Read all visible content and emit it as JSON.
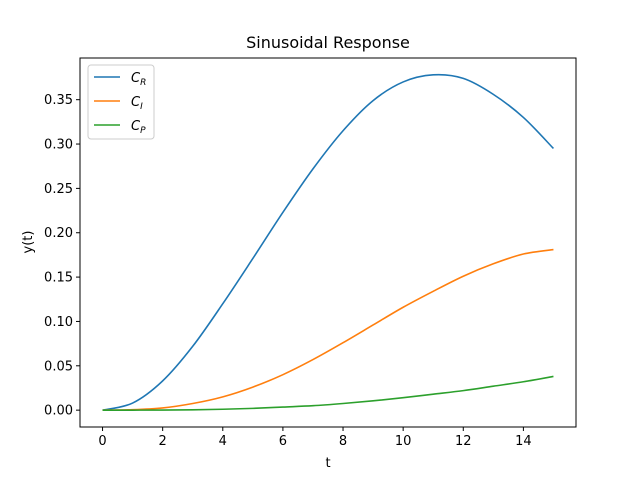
{
  "chart_data": {
    "type": "line",
    "title": "Sinusoidal Response",
    "xlabel": "t",
    "ylabel": "y(t)",
    "xlim": [
      -0.75,
      15.75
    ],
    "ylim": [
      -0.019,
      0.397
    ],
    "xticks": [
      0,
      2,
      4,
      6,
      8,
      10,
      12,
      14
    ],
    "yticks": [
      0.0,
      0.05,
      0.1,
      0.15,
      0.2,
      0.25,
      0.3,
      0.35
    ],
    "xtick_labels": [
      "0",
      "2",
      "4",
      "6",
      "8",
      "10",
      "12",
      "14"
    ],
    "ytick_labels": [
      "0.00",
      "0.05",
      "0.10",
      "0.15",
      "0.20",
      "0.25",
      "0.30",
      "0.35"
    ],
    "grid": false,
    "legend_position": "top-left",
    "x": [
      0,
      1,
      2,
      3,
      4,
      5,
      6,
      7,
      8,
      9,
      10,
      11,
      12,
      13,
      14,
      15
    ],
    "series": [
      {
        "name": "C",
        "subscript": "R",
        "color": "#1f77b4",
        "values": [
          0.0,
          0.008,
          0.033,
          0.072,
          0.12,
          0.171,
          0.223,
          0.272,
          0.315,
          0.349,
          0.37,
          0.378,
          0.374,
          0.356,
          0.33,
          0.295
        ]
      },
      {
        "name": "C",
        "subscript": "I",
        "color": "#ff7f0e",
        "values": [
          0.0,
          0.0005,
          0.0025,
          0.0075,
          0.015,
          0.026,
          0.04,
          0.057,
          0.076,
          0.096,
          0.116,
          0.134,
          0.151,
          0.165,
          0.176,
          0.181
        ]
      },
      {
        "name": "C",
        "subscript": "P",
        "color": "#2ca02c",
        "values": [
          0.0,
          0.0,
          0.0001,
          0.0004,
          0.001,
          0.002,
          0.0035,
          0.005,
          0.0075,
          0.0105,
          0.014,
          0.018,
          0.022,
          0.027,
          0.032,
          0.038
        ]
      }
    ]
  }
}
